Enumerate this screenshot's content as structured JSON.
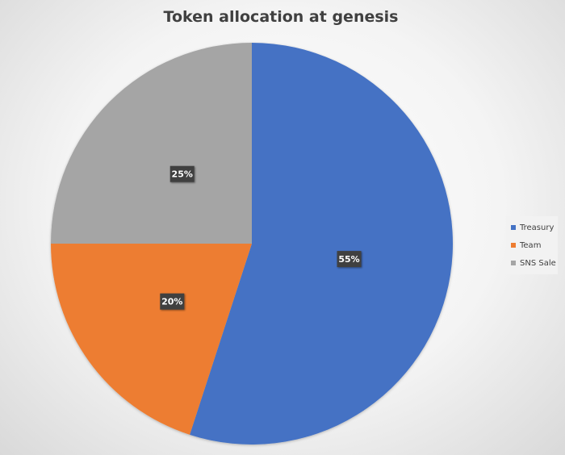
{
  "chart_data": {
    "type": "pie",
    "title": "Token allocation at genesis",
    "categories": [
      "Treasury",
      "Team",
      "SNS Sale"
    ],
    "values": [
      55,
      20,
      25
    ],
    "labels": [
      "55%",
      "20%",
      "25%"
    ],
    "colors": [
      "#4472c4",
      "#ed7d31",
      "#a5a5a5"
    ],
    "legend_position": "right"
  }
}
